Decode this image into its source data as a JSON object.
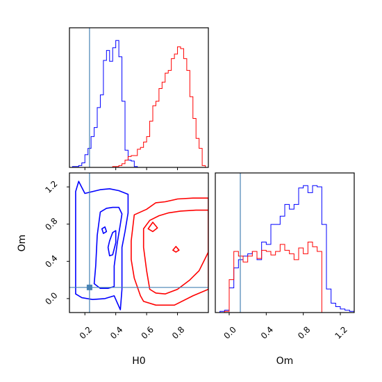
{
  "colors": {
    "series_a": "#0000ff",
    "series_b": "#ff0000",
    "truth": "#4682b4"
  },
  "chart_data": {
    "type": "corner",
    "parameters": [
      "H0",
      "Om"
    ],
    "truths": {
      "H0": 0.23,
      "Om": 0.12
    },
    "panels": {
      "h0_hist": {
        "type": "histogram",
        "xlim": [
          0.1,
          1.0
        ],
        "series": [
          {
            "color": "blue",
            "bins": [
              0.1,
              0.12,
              0.14,
              0.16,
              0.18,
              0.2,
              0.22,
              0.24,
              0.26,
              0.28,
              0.3,
              0.32,
              0.34,
              0.36,
              0.38,
              0.4,
              0.42,
              0.44,
              0.46,
              0.48,
              0.5,
              0.52,
              0.54,
              0.56
            ],
            "values": [
              0,
              1,
              1,
              2,
              5,
              14,
              21,
              34,
              44,
              66,
              80,
              118,
              129,
              117,
              132,
              140,
              122,
              73,
              19,
              8,
              7,
              1,
              0
            ]
          },
          {
            "color": "red",
            "bins": [
              0.36,
              0.38,
              0.4,
              0.42,
              0.44,
              0.46,
              0.48,
              0.5,
              0.52,
              0.54,
              0.56,
              0.58,
              0.6,
              0.62,
              0.64,
              0.66,
              0.68,
              0.7,
              0.72,
              0.74,
              0.76,
              0.78,
              0.8,
              0.82,
              0.84,
              0.86,
              0.88,
              0.9,
              0.92,
              0.94,
              0.96,
              0.98,
              1.0
            ],
            "values": [
              0,
              1,
              1,
              2,
              4,
              8,
              12,
              13,
              13,
              20,
              22,
              28,
              34,
              51,
              68,
              73,
              87,
              94,
              104,
              107,
              120,
              125,
              133,
              131,
              120,
              107,
              78,
              54,
              32,
              21,
              2,
              0
            ]
          }
        ]
      },
      "joint": {
        "type": "contour",
        "xlabel": "H0",
        "ylabel": "Om",
        "xlim": [
          0.1,
          1.0
        ],
        "ylim": [
          -0.15,
          1.35
        ],
        "xticks": [
          "0.2",
          "0.4",
          "0.6",
          "0.8"
        ],
        "yticks": [
          "0.0",
          "0.4",
          "0.8",
          "1.2"
        ],
        "series": [
          {
            "color": "blue",
            "contours": [
              [
                [
                  0.14,
                  0.05
                ],
                [
                  0.14,
                  1.15
                ],
                [
                  0.16,
                  1.26
                ],
                [
                  0.2,
                  1.13
                ],
                [
                  0.3,
                  1.17
                ],
                [
                  0.36,
                  1.18
                ],
                [
                  0.42,
                  1.16
                ],
                [
                  0.48,
                  1.12
                ],
                [
                  0.48,
                  0.92
                ],
                [
                  0.46,
                  0.72
                ],
                [
                  0.44,
                  0.55
                ],
                [
                  0.44,
                  0.35
                ],
                [
                  0.44,
                  0.1
                ],
                [
                  0.43,
                  -0.12
                ],
                [
                  0.39,
                  0.03
                ],
                [
                  0.33,
                  0.0
                ],
                [
                  0.25,
                  -0.01
                ],
                [
                  0.18,
                  0.01
                ],
                [
                  0.14,
                  0.05
                ]
              ],
              [
                [
                  0.26,
                  0.16
                ],
                [
                  0.27,
                  0.35
                ],
                [
                  0.28,
                  0.68
                ],
                [
                  0.3,
                  0.93
                ],
                [
                  0.34,
                  0.97
                ],
                [
                  0.38,
                  0.98
                ],
                [
                  0.42,
                  0.98
                ],
                [
                  0.44,
                  0.91
                ],
                [
                  0.43,
                  0.8
                ],
                [
                  0.41,
                  0.6
                ],
                [
                  0.39,
                  0.35
                ],
                [
                  0.39,
                  0.13
                ],
                [
                  0.35,
                  0.11
                ],
                [
                  0.3,
                  0.11
                ],
                [
                  0.26,
                  0.16
                ]
              ],
              [
                [
                  0.31,
                  0.75
                ],
                [
                  0.33,
                  0.77
                ],
                [
                  0.34,
                  0.72
                ],
                [
                  0.32,
                  0.7
                ],
                [
                  0.31,
                  0.75
                ]
              ],
              [
                [
                  0.35,
                  0.55
                ],
                [
                  0.36,
                  0.62
                ],
                [
                  0.38,
                  0.71
                ],
                [
                  0.4,
                  0.73
                ],
                [
                  0.4,
                  0.6
                ],
                [
                  0.38,
                  0.47
                ],
                [
                  0.36,
                  0.46
                ],
                [
                  0.35,
                  0.55
                ]
              ]
            ]
          },
          {
            "color": "red",
            "contours": [
              [
                [
                  0.56,
                  0.03
                ],
                [
                  0.52,
                  0.22
                ],
                [
                  0.5,
                  0.42
                ],
                [
                  0.5,
                  0.62
                ],
                [
                  0.52,
                  0.9
                ],
                [
                  0.56,
                  0.93
                ],
                [
                  0.6,
                  0.96
                ],
                [
                  0.66,
                  1.03
                ],
                [
                  0.72,
                  1.04
                ],
                [
                  0.8,
                  1.07
                ],
                [
                  0.9,
                  1.08
                ],
                [
                  1.0,
                  1.08
                ],
                [
                  1.0,
                  0.1
                ],
                [
                  0.9,
                  0.03
                ],
                [
                  0.78,
                  -0.07
                ],
                [
                  0.66,
                  -0.07
                ],
                [
                  0.58,
                  -0.03
                ],
                [
                  0.56,
                  0.03
                ]
              ],
              [
                [
                  0.62,
                  0.1
                ],
                [
                  0.6,
                  0.3
                ],
                [
                  0.58,
                  0.55
                ],
                [
                  0.58,
                  0.75
                ],
                [
                  0.62,
                  0.84
                ],
                [
                  0.68,
                  0.89
                ],
                [
                  0.74,
                  0.92
                ],
                [
                  0.82,
                  0.94
                ],
                [
                  0.92,
                  0.95
                ],
                [
                  1.0,
                  0.95
                ],
                [
                  1.0,
                  0.5
                ],
                [
                  0.94,
                  0.3
                ],
                [
                  0.88,
                  0.2
                ],
                [
                  0.8,
                  0.1
                ],
                [
                  0.72,
                  0.05
                ],
                [
                  0.66,
                  0.06
                ],
                [
                  0.62,
                  0.1
                ]
              ],
              [
                [
                  0.61,
                  0.75
                ],
                [
                  0.64,
                  0.82
                ],
                [
                  0.67,
                  0.76
                ],
                [
                  0.64,
                  0.72
                ],
                [
                  0.61,
                  0.75
                ]
              ],
              [
                [
                  0.77,
                  0.52
                ],
                [
                  0.79,
                  0.56
                ],
                [
                  0.81,
                  0.52
                ],
                [
                  0.79,
                  0.5
                ],
                [
                  0.77,
                  0.52
                ]
              ]
            ]
          }
        ]
      },
      "om_hist": {
        "type": "histogram",
        "xlabel": "Om",
        "xlim": [
          -0.15,
          1.35
        ],
        "xticks": [
          "0.0",
          "0.4",
          "0.8",
          "1.2"
        ],
        "series": [
          {
            "color": "blue",
            "bins": [
              -0.15,
              -0.1,
              -0.05,
              0.0,
              0.05,
              0.1,
              0.15,
              0.2,
              0.25,
              0.3,
              0.35,
              0.4,
              0.45,
              0.5,
              0.55,
              0.6,
              0.65,
              0.7,
              0.75,
              0.8,
              0.85,
              0.9,
              0.95,
              1.0,
              1.05,
              1.1,
              1.15,
              1.2,
              1.25,
              1.3,
              1.35
            ],
            "values": [
              0,
              1,
              2,
              21,
              38,
              45,
              48,
              50,
              52,
              45,
              60,
              58,
              75,
              75,
              82,
              92,
              88,
              92,
              106,
              108,
              102,
              108,
              107,
              75,
              20,
              8,
              5,
              3,
              2,
              1
            ]
          },
          {
            "color": "red",
            "bins": [
              -0.15,
              -0.1,
              -0.05,
              0.0,
              0.05,
              0.1,
              0.15,
              0.2,
              0.25,
              0.3,
              0.35,
              0.4,
              0.45,
              0.5,
              0.55,
              0.6,
              0.65,
              0.7,
              0.75,
              0.8,
              0.85,
              0.9,
              0.95,
              1.0,
              1.05
            ],
            "values": [
              0,
              0,
              1,
              28,
              52,
              48,
              43,
              48,
              52,
              46,
              53,
              52,
              49,
              52,
              58,
              53,
              50,
              45,
              55,
              50,
              60,
              56,
              52,
              0
            ]
          }
        ]
      }
    }
  }
}
